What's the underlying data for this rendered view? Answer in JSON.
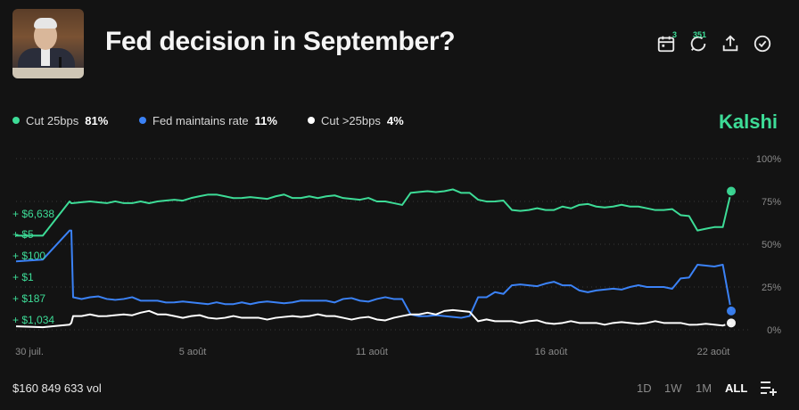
{
  "header": {
    "title": "Fed decision in September?",
    "calendar_badge": "3",
    "comments_badge": "351"
  },
  "legend": [
    {
      "name": "Cut 25bps",
      "pct": "81%",
      "color": "#3ddc97"
    },
    {
      "name": "Fed maintains rate",
      "pct": "11%",
      "color": "#3b82f6"
    },
    {
      "name": "Cut >25bps",
      "pct": "4%",
      "color": "#ffffff"
    }
  ],
  "brand": "Kalshi",
  "trade_labels": [
    "+ $6,638",
    "+ $5",
    "+ $100",
    "+ $1",
    "+ $187",
    "+ $1,034"
  ],
  "chart_data": {
    "type": "line",
    "x_ticks": [
      "30 juil.",
      "5 août",
      "11 août",
      "16 août",
      "22 août"
    ],
    "y_ticks": [
      "100%",
      "75%",
      "50%",
      "25%",
      "0%"
    ],
    "ylim": [
      0,
      100
    ],
    "grid": true,
    "series": [
      {
        "name": "Cut 25bps",
        "color": "#3ddc97",
        "values": [
          55,
          75,
          74,
          75,
          74,
          74,
          75,
          75,
          76,
          77,
          79,
          78,
          77,
          77,
          78,
          77,
          78,
          78,
          77,
          76,
          75,
          74,
          80,
          81,
          81,
          80,
          76,
          75,
          70,
          70,
          70,
          72,
          73,
          72,
          72,
          72,
          71,
          70,
          67,
          58,
          60,
          81
        ]
      },
      {
        "name": "Fed maintains rate",
        "color": "#3b82f6",
        "values": [
          40,
          58,
          19,
          19,
          18,
          18,
          17,
          17,
          16,
          16,
          15,
          15,
          16,
          16,
          16,
          16,
          17,
          17,
          18,
          17,
          18,
          18,
          9,
          8,
          8,
          7,
          19,
          22,
          26,
          26,
          27,
          26,
          23,
          23,
          24,
          25,
          25,
          25,
          30,
          38,
          37,
          11
        ]
      },
      {
        "name": "Cut >25bps",
        "color": "#ffffff",
        "values": [
          2,
          3,
          8,
          9,
          8,
          9,
          10,
          9,
          8,
          8,
          7,
          7,
          7,
          7,
          7,
          8,
          8,
          8,
          7,
          7,
          6,
          7,
          9,
          10,
          11,
          11,
          5,
          5,
          5,
          5,
          4,
          4,
          4,
          4,
          4,
          4,
          4,
          4,
          4,
          3,
          3,
          4
        ]
      }
    ]
  },
  "footer": {
    "volume": "$160 849 633 vol",
    "ranges": [
      "1D",
      "1W",
      "1M",
      "ALL"
    ],
    "active_range": "ALL"
  }
}
